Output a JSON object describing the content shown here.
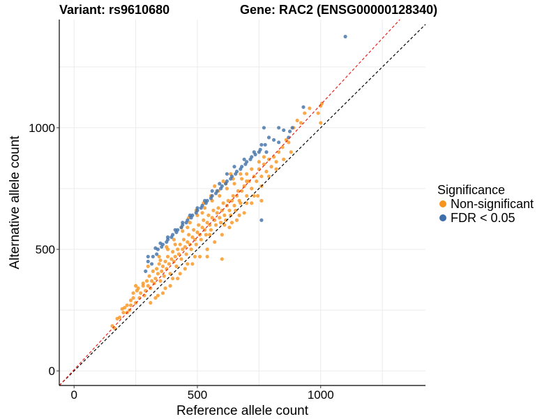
{
  "header": {
    "variant": "Variant: rs9610680",
    "gene": "Gene: RAC2 (ENSG00000128340)"
  },
  "chart_data": {
    "type": "scatter",
    "xlabel": "Reference allele count",
    "ylabel": "Alternative allele count",
    "xlim": [
      -60,
      1425
    ],
    "ylim": [
      -60,
      1445
    ],
    "x_ticks": [
      0,
      500,
      1000
    ],
    "y_ticks": [
      0,
      500,
      1000
    ],
    "grid": true,
    "reference_lines": [
      {
        "name": "identity",
        "slope": 1.0,
        "intercept": 0,
        "color": "#000000",
        "style": "dashed"
      },
      {
        "name": "fit",
        "slope": 1.09,
        "intercept": 5,
        "color": "#e8201c",
        "style": "dashed"
      }
    ],
    "legend": {
      "title": "Significance",
      "position": "right",
      "entries": [
        {
          "label": "Non-significant",
          "color": "#f7941d"
        },
        {
          "label": "FDR < 0.05",
          "color": "#3e6fa8"
        }
      ]
    },
    "series": [
      {
        "name": "Non-significant",
        "color": "#f7941d",
        "points": [
          [
            155,
            185
          ],
          [
            165,
            175
          ],
          [
            175,
            215
          ],
          [
            185,
            220
          ],
          [
            195,
            255
          ],
          [
            205,
            260
          ],
          [
            215,
            240
          ],
          [
            225,
            250
          ],
          [
            230,
            270
          ],
          [
            240,
            300
          ],
          [
            250,
            280
          ],
          [
            255,
            330
          ],
          [
            265,
            300
          ],
          [
            270,
            320
          ],
          [
            280,
            350
          ],
          [
            285,
            310
          ],
          [
            290,
            330
          ],
          [
            295,
            370
          ],
          [
            300,
            350
          ],
          [
            305,
            390
          ],
          [
            310,
            340
          ],
          [
            315,
            370
          ],
          [
            320,
            410
          ],
          [
            325,
            360
          ],
          [
            330,
            380
          ],
          [
            335,
            420
          ],
          [
            340,
            400
          ],
          [
            345,
            440
          ],
          [
            350,
            370
          ],
          [
            355,
            410
          ],
          [
            360,
            430
          ],
          [
            365,
            390
          ],
          [
            370,
            450
          ],
          [
            375,
            420
          ],
          [
            380,
            470
          ],
          [
            385,
            440
          ],
          [
            390,
            400
          ],
          [
            395,
            460
          ],
          [
            400,
            490
          ],
          [
            405,
            450
          ],
          [
            410,
            470
          ],
          [
            415,
            430
          ],
          [
            420,
            500
          ],
          [
            425,
            480
          ],
          [
            430,
            520
          ],
          [
            435,
            460
          ],
          [
            440,
            500
          ],
          [
            445,
            540
          ],
          [
            450,
            510
          ],
          [
            455,
            480
          ],
          [
            460,
            530
          ],
          [
            465,
            560
          ],
          [
            470,
            520
          ],
          [
            475,
            500
          ],
          [
            480,
            550
          ],
          [
            485,
            580
          ],
          [
            490,
            540
          ],
          [
            495,
            520
          ],
          [
            500,
            570
          ],
          [
            505,
            600
          ],
          [
            510,
            560
          ],
          [
            515,
            540
          ],
          [
            520,
            590
          ],
          [
            525,
            620
          ],
          [
            530,
            580
          ],
          [
            535,
            560
          ],
          [
            540,
            610
          ],
          [
            545,
            640
          ],
          [
            550,
            600
          ],
          [
            555,
            580
          ],
          [
            560,
            630
          ],
          [
            565,
            660
          ],
          [
            570,
            620
          ],
          [
            575,
            600
          ],
          [
            580,
            650
          ],
          [
            585,
            670
          ],
          [
            590,
            630
          ],
          [
            595,
            610
          ],
          [
            600,
            660
          ],
          [
            605,
            690
          ],
          [
            610,
            640
          ],
          [
            615,
            620
          ],
          [
            620,
            680
          ],
          [
            625,
            700
          ],
          [
            630,
            660
          ],
          [
            635,
            640
          ],
          [
            640,
            700
          ],
          [
            645,
            720
          ],
          [
            650,
            680
          ],
          [
            655,
            660
          ],
          [
            660,
            720
          ],
          [
            665,
            740
          ],
          [
            670,
            700
          ],
          [
            675,
            690
          ],
          [
            680,
            740
          ],
          [
            690,
            760
          ],
          [
            700,
            720
          ],
          [
            710,
            780
          ],
          [
            720,
            750
          ],
          [
            730,
            800
          ],
          [
            740,
            780
          ],
          [
            750,
            830
          ],
          [
            760,
            800
          ],
          [
            770,
            850
          ],
          [
            780,
            820
          ],
          [
            790,
            870
          ],
          [
            800,
            840
          ],
          [
            810,
            880
          ],
          [
            820,
            860
          ],
          [
            830,
            900
          ],
          [
            845,
            920
          ],
          [
            860,
            950
          ],
          [
            870,
            940
          ],
          [
            890,
            1000
          ],
          [
            905,
            1030
          ],
          [
            920,
            1020
          ],
          [
            935,
            1060
          ],
          [
            955,
            1080
          ],
          [
            1000,
            1090
          ],
          [
            1005,
            1100
          ],
          [
            990,
            1060
          ],
          [
            1000,
            1020
          ],
          [
            350,
            455
          ],
          [
            380,
            500
          ],
          [
            410,
            520
          ],
          [
            440,
            575
          ],
          [
            470,
            610
          ],
          [
            500,
            640
          ],
          [
            530,
            670
          ],
          [
            560,
            700
          ],
          [
            590,
            720
          ],
          [
            620,
            750
          ],
          [
            650,
            770
          ],
          [
            680,
            790
          ],
          [
            700,
            810
          ],
          [
            720,
            830
          ],
          [
            750,
            860
          ],
          [
            770,
            880
          ],
          [
            330,
            300
          ],
          [
            360,
            320
          ],
          [
            390,
            350
          ],
          [
            420,
            380
          ],
          [
            450,
            420
          ],
          [
            480,
            440
          ],
          [
            510,
            470
          ],
          [
            540,
            500
          ],
          [
            570,
            530
          ],
          [
            600,
            560
          ],
          [
            630,
            590
          ],
          [
            660,
            620
          ],
          [
            690,
            650
          ],
          [
            720,
            690
          ],
          [
            745,
            720
          ],
          [
            700,
            780
          ],
          [
            760,
            700
          ],
          [
            600,
            460
          ],
          [
            540,
            470
          ],
          [
            300,
            430
          ],
          [
            280,
            360
          ],
          [
            250,
            350
          ],
          [
            230,
            290
          ],
          [
            200,
            240
          ],
          [
            215,
            270
          ],
          [
            240,
            320
          ],
          [
            260,
            340
          ],
          [
            345,
            470
          ],
          [
            375,
            510
          ],
          [
            405,
            540
          ],
          [
            435,
            590
          ],
          [
            465,
            630
          ],
          [
            495,
            660
          ],
          [
            525,
            690
          ],
          [
            555,
            720
          ],
          [
            585,
            740
          ],
          [
            615,
            770
          ],
          [
            645,
            790
          ],
          [
            675,
            810
          ],
          [
            605,
            780
          ],
          [
            635,
            810
          ],
          [
            570,
            760
          ],
          [
            460,
            590
          ],
          [
            520,
            650
          ],
          [
            490,
            470
          ],
          [
            550,
            560
          ],
          [
            610,
            600
          ],
          [
            640,
            610
          ],
          [
            670,
            640
          ],
          [
            700,
            690
          ],
          [
            730,
            720
          ],
          [
            760,
            760
          ],
          [
            790,
            800
          ],
          [
            820,
            830
          ],
          [
            850,
            870
          ],
          [
            880,
            900
          ],
          [
            310,
            280
          ],
          [
            340,
            310
          ],
          [
            370,
            340
          ],
          [
            400,
            380
          ],
          [
            430,
            400
          ],
          [
            460,
            440
          ]
        ]
      },
      {
        "name": "FDR < 0.05",
        "color": "#3e6fa8",
        "points": [
          [
            1100,
            1375
          ],
          [
            930,
            1085
          ],
          [
            875,
            985
          ],
          [
            830,
            1000
          ],
          [
            810,
            950
          ],
          [
            780,
            900
          ],
          [
            790,
            960
          ],
          [
            760,
            930
          ],
          [
            730,
            900
          ],
          [
            700,
            860
          ],
          [
            680,
            840
          ],
          [
            660,
            820
          ],
          [
            640,
            800
          ],
          [
            620,
            780
          ],
          [
            600,
            760
          ],
          [
            580,
            740
          ],
          [
            560,
            720
          ],
          [
            540,
            700
          ],
          [
            520,
            680
          ],
          [
            500,
            660
          ],
          [
            480,
            640
          ],
          [
            460,
            620
          ],
          [
            440,
            600
          ],
          [
            420,
            580
          ],
          [
            400,
            560
          ],
          [
            380,
            540
          ],
          [
            360,
            520
          ],
          [
            340,
            500
          ],
          [
            320,
            470
          ],
          [
            300,
            450
          ],
          [
            290,
            410
          ],
          [
            315,
            440
          ],
          [
            335,
            480
          ],
          [
            355,
            510
          ],
          [
            375,
            530
          ],
          [
            395,
            550
          ],
          [
            415,
            570
          ],
          [
            435,
            590
          ],
          [
            455,
            610
          ],
          [
            475,
            630
          ],
          [
            495,
            650
          ],
          [
            515,
            670
          ],
          [
            535,
            690
          ],
          [
            555,
            710
          ],
          [
            575,
            730
          ],
          [
            595,
            750
          ],
          [
            615,
            770
          ],
          [
            635,
            790
          ],
          [
            655,
            810
          ],
          [
            675,
            830
          ],
          [
            695,
            850
          ],
          [
            715,
            870
          ],
          [
            735,
            890
          ],
          [
            755,
            910
          ],
          [
            775,
            930
          ],
          [
            850,
            990
          ],
          [
            870,
            960
          ],
          [
            830,
            940
          ],
          [
            750,
            900
          ],
          [
            720,
            880
          ],
          [
            690,
            870
          ],
          [
            650,
            840
          ],
          [
            620,
            810
          ],
          [
            590,
            770
          ],
          [
            560,
            740
          ],
          [
            530,
            700
          ],
          [
            500,
            670
          ],
          [
            470,
            640
          ],
          [
            440,
            610
          ],
          [
            410,
            580
          ],
          [
            380,
            550
          ],
          [
            350,
            525
          ],
          [
            330,
            505
          ],
          [
            300,
            470
          ],
          [
            760,
            620
          ],
          [
            770,
            1000
          ],
          [
            885,
            1000
          ]
        ]
      }
    ]
  }
}
